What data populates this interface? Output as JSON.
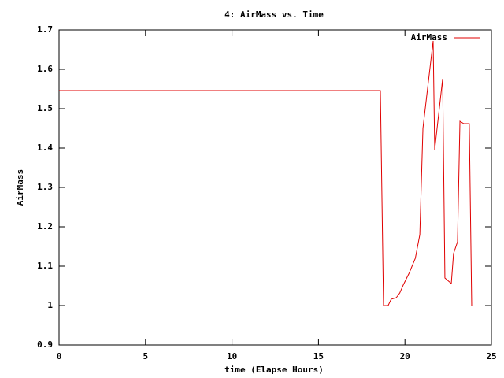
{
  "chart_data": {
    "type": "line",
    "title": "4: AirMass vs. Time",
    "x_label": "time (Elapse Hours)",
    "y_label": "AirMass",
    "x": [
      0,
      18.58,
      18.76,
      19.03,
      19.2,
      19.5,
      19.7,
      19.9,
      20.26,
      20.6,
      20.86,
      21.04,
      21.63,
      21.72,
      22.18,
      22.31,
      22.68,
      22.81,
      23.04,
      23.18,
      23.4,
      23.72,
      23.86
    ],
    "series": [
      {
        "name": "AirMass",
        "color": "#e00000",
        "values": [
          1.546,
          1.546,
          1.0,
          1.0,
          1.016,
          1.02,
          1.032,
          1.052,
          1.084,
          1.12,
          1.18,
          1.45,
          1.672,
          1.396,
          1.576,
          1.07,
          1.056,
          1.132,
          1.162,
          1.468,
          1.462,
          1.462,
          1.0
        ]
      }
    ],
    "xlim": [
      0,
      25
    ],
    "xticks": [
      0,
      5,
      10,
      15,
      20,
      25
    ],
    "ylim": [
      0.9,
      1.7
    ],
    "yticks": [
      0.9,
      1,
      1.1,
      1.2,
      1.3,
      1.4,
      1.5,
      1.6,
      1.7
    ],
    "grid": false,
    "legend": "top-right"
  }
}
